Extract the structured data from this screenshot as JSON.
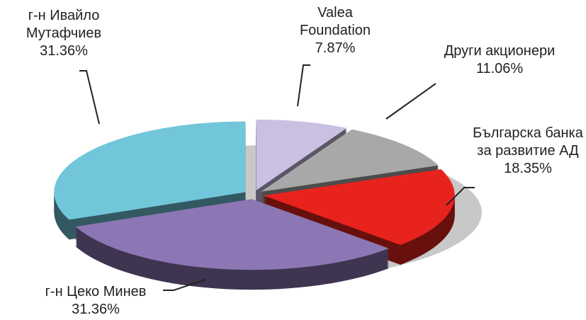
{
  "chart_data": {
    "type": "pie",
    "categories": [
      "Valea Foundation",
      "Други акционери",
      "Българска банка за развитие АД",
      "г-н Цеко Минев",
      "г-н Ивайло Мутафчиев"
    ],
    "values": [
      7.87,
      11.06,
      18.35,
      31.36,
      31.36
    ],
    "value_labels": [
      "7.87%",
      "11.06%",
      "18.35%",
      "31.36%",
      "31.36%"
    ],
    "colors": [
      "#c9c0e2",
      "#a8a8a8",
      "#e8231d",
      "#8c76b3",
      "#72c6da"
    ]
  }
}
